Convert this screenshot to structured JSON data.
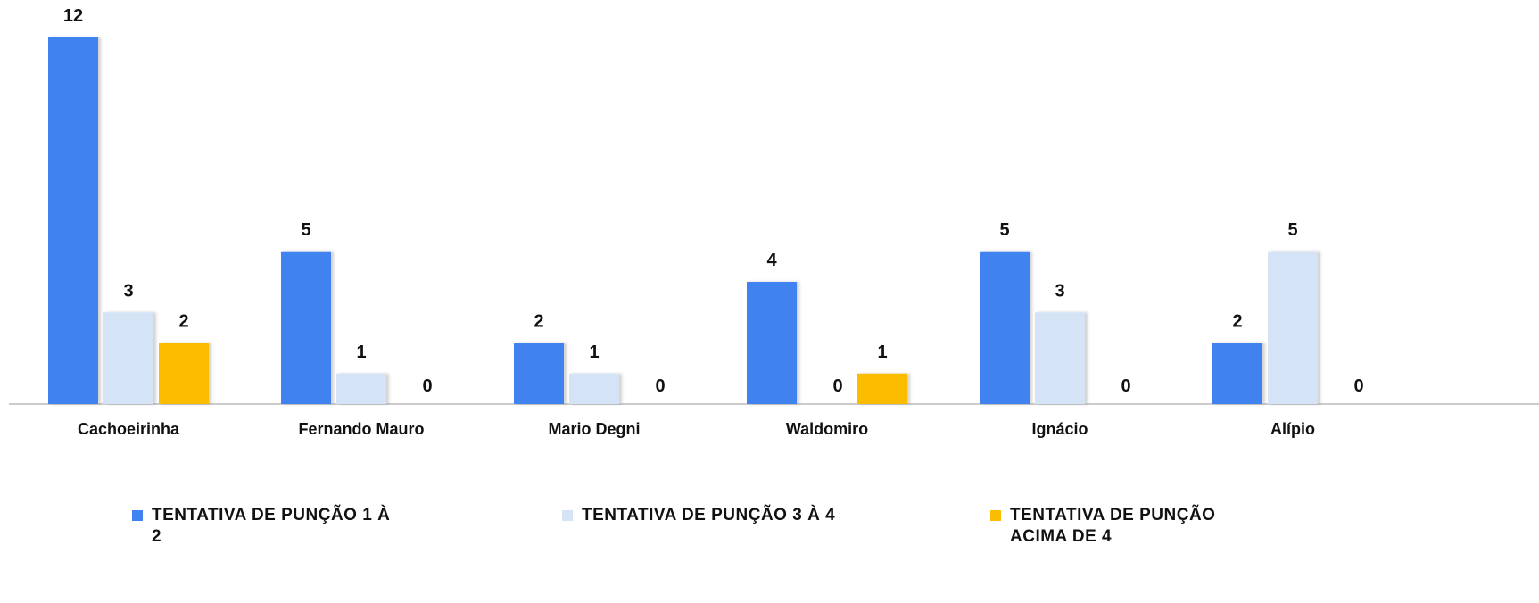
{
  "chart_data": {
    "type": "bar",
    "categories": [
      "Cachoeirinha",
      "Fernando Mauro",
      "Mario Degni",
      "Waldomiro",
      "Ignácio",
      "Alípio"
    ],
    "series": [
      {
        "name": "TENTATIVA DE PUNÇÃO 1 À 2",
        "color": "#3f82f0",
        "values": [
          12,
          5,
          2,
          4,
          5,
          2
        ]
      },
      {
        "name": "TENTATIVA DE PUNÇÃO 3 À 4",
        "color": "#d5e3f7",
        "values": [
          3,
          1,
          1,
          0,
          3,
          5
        ]
      },
      {
        "name": "TENTATIVA DE PUNÇÃO ACIMA DE 4",
        "color": "#fbbc04",
        "values": [
          2,
          0,
          0,
          1,
          0,
          0
        ]
      }
    ],
    "legend": "bottom"
  }
}
